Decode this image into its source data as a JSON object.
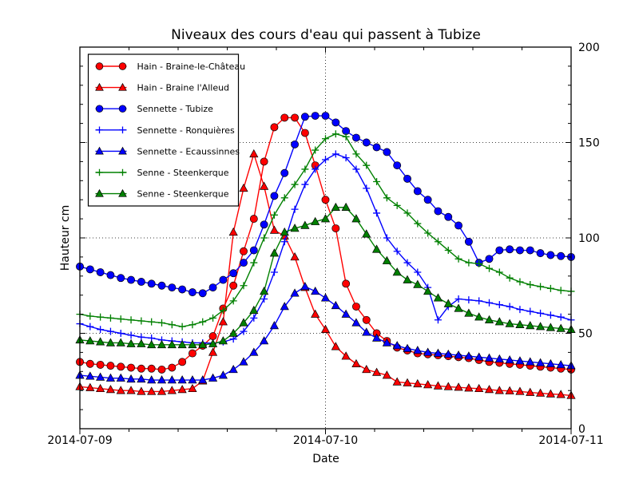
{
  "chart_data": {
    "type": "line",
    "title": "Niveaux des cours d'eau qui passent à Tubize",
    "xlabel": "Date",
    "ylabel": "Hauteur cm",
    "ylim": [
      0,
      200
    ],
    "y_major_ticks": [
      0,
      50,
      100,
      150,
      200
    ],
    "y_minor_step": 10,
    "x_total_hours": 48,
    "x_step_hours": 1,
    "x_tick_hours": [
      0,
      24,
      48
    ],
    "x_tick_labels": [
      "2014-07-09",
      "2014-07-10",
      "2014-07-11"
    ],
    "x_minor_tick_hours": [
      4.8,
      9.6,
      14.4,
      19.2,
      28.8,
      33.6,
      38.4,
      43.2
    ],
    "grid": {
      "horizontal_at": [
        50,
        100,
        150
      ],
      "vertical_at_hours": [
        24
      ],
      "style": "dotted"
    },
    "legend_position": "upper-left",
    "colors": {
      "red": "#ff0000",
      "blue": "#0000ff",
      "green": "#008000"
    },
    "series": [
      {
        "id": "hain-braine-le-chateau",
        "name": "Hain - Braine-le-Château",
        "color": "#ff0000",
        "marker": "circle",
        "values": [
          35,
          34,
          33.5,
          33,
          32.5,
          32,
          31.5,
          31.5,
          31,
          32,
          35,
          39.5,
          43.5,
          48.5,
          63,
          75,
          93,
          110,
          140,
          158,
          163,
          163,
          155,
          138,
          120,
          105,
          76,
          64,
          57,
          50,
          46,
          42.5,
          41,
          39.5,
          39,
          38.5,
          38,
          37.5,
          37,
          36,
          35,
          34.5,
          34,
          33.5,
          33,
          32.5,
          32,
          31.5,
          31
        ]
      },
      {
        "id": "hain-braine-alleud",
        "name": "Hain - Braine l'Alleud",
        "color": "#ff0000",
        "marker": "triangle",
        "values": [
          22,
          21.5,
          21,
          20.5,
          20,
          20,
          19.5,
          19.5,
          19.5,
          20,
          20.5,
          21,
          25,
          40,
          56,
          103,
          126,
          144,
          127,
          104,
          101,
          90,
          74,
          60,
          52,
          43,
          38,
          34,
          31,
          29.5,
          28,
          24.5,
          24,
          23.5,
          23,
          22.4,
          22,
          21.7,
          21.3,
          21,
          20.5,
          20,
          19.8,
          19.5,
          19,
          18.6,
          18.2,
          17.9,
          17.4
        ]
      },
      {
        "id": "sennette-tubize",
        "name": "Sennette - Tubize",
        "color": "#0000ff",
        "marker": "circle",
        "values": [
          85,
          83.5,
          82,
          80.5,
          79,
          78,
          77,
          76,
          75,
          74,
          73,
          71.5,
          71,
          74,
          78,
          81.5,
          87,
          93.5,
          107,
          122,
          134,
          149,
          163.5,
          164,
          164,
          160.5,
          156,
          152.5,
          150,
          147.5,
          145,
          138,
          131,
          124.5,
          120,
          114,
          111,
          106.5,
          98,
          87,
          89,
          93.5,
          94,
          93.5,
          93.5,
          92,
          91,
          90.5,
          90
        ]
      },
      {
        "id": "sennette-ronquieres",
        "name": "Sennette - Ronquières",
        "color": "#0000ff",
        "marker": "plus",
        "values": [
          55,
          53.5,
          52,
          51,
          50,
          49,
          48,
          47.5,
          46.5,
          46,
          45.5,
          45,
          45,
          44.8,
          45.5,
          47,
          51,
          58,
          68,
          82,
          98,
          115,
          128,
          136,
          141,
          144,
          142,
          136,
          126,
          113,
          100,
          93,
          87,
          82,
          74,
          57,
          64,
          68,
          67.5,
          67,
          66,
          65,
          64,
          62.5,
          61.5,
          60.5,
          59.5,
          58.5,
          57
        ]
      },
      {
        "id": "sennette-ecaussinnes",
        "name": "Sennette - Ecaussinnes",
        "color": "#0000ff",
        "marker": "triangle",
        "values": [
          28,
          27.5,
          27,
          26.5,
          26.5,
          26,
          26,
          25.5,
          25.5,
          25.5,
          25.5,
          25.5,
          25.5,
          26.5,
          28,
          31,
          35,
          40,
          46,
          54,
          64,
          71,
          74.5,
          72,
          68.5,
          64.5,
          60,
          55.5,
          50.5,
          47.5,
          45,
          43.5,
          42,
          41,
          40,
          39.5,
          39,
          38.5,
          38,
          37.5,
          37,
          36.5,
          36,
          35.5,
          35,
          34.5,
          34,
          33.5,
          33
        ]
      },
      {
        "id": "senne-steenkerque-plus",
        "name": "Senne - Steenkerque",
        "color": "#008000",
        "marker": "plus",
        "values": [
          60,
          59,
          58.5,
          58,
          57.5,
          57,
          56.5,
          56,
          55.5,
          54.5,
          53.5,
          54.5,
          56,
          58,
          62,
          67,
          75,
          87,
          100,
          112,
          121,
          128,
          136,
          146,
          152,
          154.5,
          153,
          144,
          138,
          129.5,
          121,
          117,
          113,
          107.5,
          102.5,
          98,
          93.5,
          89,
          87,
          86.5,
          84,
          82,
          79,
          77,
          75.5,
          74.5,
          73.5,
          72.5,
          72
        ]
      },
      {
        "id": "senne-steenkerque-tri",
        "name": "Senne - Steenkerque",
        "color": "#008000",
        "marker": "triangle",
        "values": [
          46.5,
          46,
          45.5,
          45,
          45,
          44.5,
          44.5,
          44,
          44,
          44,
          44,
          44,
          44,
          44.5,
          46,
          50,
          55.5,
          62,
          72,
          92,
          103,
          105,
          106.5,
          108.5,
          110,
          116,
          116,
          110,
          102,
          94,
          88,
          82,
          78,
          75.5,
          72,
          68.5,
          65.5,
          63,
          60.5,
          58.5,
          57,
          56,
          55,
          54.5,
          54,
          53.5,
          53,
          52.5,
          52
        ]
      }
    ]
  }
}
